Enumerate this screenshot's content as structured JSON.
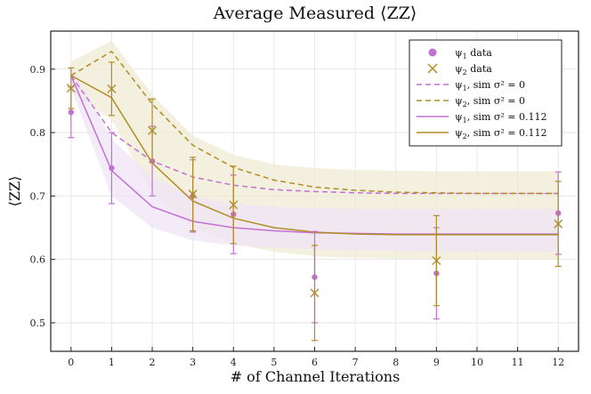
{
  "chart_data": {
    "type": "scatter",
    "title": "Average Measured ⟨ZZ⟩",
    "xlabel": "# of Channel Iterations",
    "ylabel": "⟨ZZ⟩",
    "xlim": [
      -0.5,
      12.5
    ],
    "ylim": [
      0.455,
      0.96
    ],
    "xticks": [
      0,
      1,
      2,
      3,
      4,
      5,
      6,
      7,
      8,
      9,
      10,
      11,
      12
    ],
    "xtick_labels": [
      "0",
      "1",
      "2",
      "3",
      "4",
      "5",
      "6",
      "7",
      "8",
      "9",
      "10",
      "11",
      "12"
    ],
    "yticks": [
      0.5,
      0.6,
      0.7,
      0.8,
      0.9
    ],
    "ytick_labels": [
      "0.5",
      "0.6",
      "0.7",
      "0.8",
      "0.9"
    ],
    "grid": true,
    "legend_position": "top-right",
    "colors": {
      "psi1": "#c271d2",
      "psi2": "#b08e26",
      "band_psi1": "#efe3f7",
      "band_psi2": "#f0ebd4",
      "band_overlap": "#ead9d9"
    },
    "data_series": [
      {
        "name": "psi1 data",
        "legend_main": "ψ",
        "legend_sub": "1",
        "legend_rest": " data",
        "marker": "circle",
        "color": "#c271d2",
        "x": [
          0,
          1,
          2,
          3,
          4,
          6,
          9,
          12
        ],
        "y": [
          0.832,
          0.744,
          0.755,
          0.7,
          0.671,
          0.572,
          0.578,
          0.673
        ],
        "err": [
          0.04,
          0.056,
          0.055,
          0.057,
          0.062,
          0.072,
          0.072,
          0.065
        ]
      },
      {
        "name": "psi2 data",
        "legend_main": "ψ",
        "legend_sub": "2",
        "legend_rest": " data",
        "marker": "x",
        "color": "#b08e26",
        "x": [
          0,
          1,
          2,
          3,
          4,
          6,
          9,
          12
        ],
        "y": [
          0.87,
          0.869,
          0.803,
          0.703,
          0.686,
          0.547,
          0.598,
          0.656
        ],
        "err": [
          0.032,
          0.042,
          0.05,
          0.058,
          0.061,
          0.075,
          0.071,
          0.067
        ]
      }
    ],
    "sim_series": [
      {
        "name": "psi1 sim sigma2 0",
        "legend_main": "ψ",
        "legend_sub": "1",
        "legend_rest": ", sim σ² = 0",
        "style": "dashed",
        "color": "#c271d2",
        "x": [
          0,
          1,
          2,
          3,
          4,
          5,
          6,
          7,
          8,
          9,
          10,
          11,
          12
        ],
        "y": [
          0.89,
          0.8,
          0.755,
          0.73,
          0.717,
          0.71,
          0.707,
          0.705,
          0.704,
          0.704,
          0.704,
          0.704,
          0.704
        ]
      },
      {
        "name": "psi2 sim sigma2 0",
        "legend_main": "ψ",
        "legend_sub": "2",
        "legend_rest": ", sim σ² = 0",
        "style": "dashed",
        "color": "#b08e26",
        "x": [
          0,
          1,
          2,
          3,
          4,
          5,
          6,
          7,
          8,
          9,
          10,
          11,
          12
        ],
        "y": [
          0.89,
          0.928,
          0.845,
          0.78,
          0.745,
          0.725,
          0.714,
          0.709,
          0.706,
          0.705,
          0.704,
          0.704,
          0.704
        ]
      },
      {
        "name": "psi1 sim sigma2 0.112",
        "legend_main": "ψ",
        "legend_sub": "1",
        "legend_rest": ", sim σ² = 0.112",
        "style": "solid",
        "color": "#c271d2",
        "x": [
          0,
          1,
          2,
          3,
          4,
          5,
          6,
          7,
          8,
          9,
          10,
          11,
          12
        ],
        "y": [
          0.89,
          0.74,
          0.683,
          0.66,
          0.65,
          0.645,
          0.642,
          0.641,
          0.64,
          0.64,
          0.64,
          0.64,
          0.64
        ],
        "band_lo": [
          0.87,
          0.7,
          0.65,
          0.63,
          0.622,
          0.618,
          0.616,
          0.614,
          0.613,
          0.612,
          0.612,
          0.612,
          0.612
        ],
        "band_hi": [
          0.905,
          0.79,
          0.73,
          0.7,
          0.688,
          0.683,
          0.681,
          0.68,
          0.679,
          0.679,
          0.679,
          0.679,
          0.679
        ]
      },
      {
        "name": "psi2 sim sigma2 0.112",
        "legend_main": "ψ",
        "legend_sub": "2",
        "legend_rest": ", sim σ² = 0.112",
        "style": "solid",
        "color": "#b08e26",
        "x": [
          0,
          1,
          2,
          3,
          4,
          5,
          6,
          7,
          8,
          9,
          10,
          11,
          12
        ],
        "y": [
          0.89,
          0.855,
          0.752,
          0.692,
          0.665,
          0.65,
          0.643,
          0.64,
          0.639,
          0.639,
          0.639,
          0.639,
          0.639
        ],
        "band_lo": [
          0.865,
          0.82,
          0.705,
          0.65,
          0.625,
          0.612,
          0.605,
          0.602,
          0.601,
          0.6,
          0.6,
          0.6,
          0.6
        ],
        "band_hi": [
          0.912,
          0.945,
          0.86,
          0.795,
          0.765,
          0.75,
          0.744,
          0.741,
          0.74,
          0.739,
          0.739,
          0.739,
          0.739
        ]
      }
    ]
  }
}
